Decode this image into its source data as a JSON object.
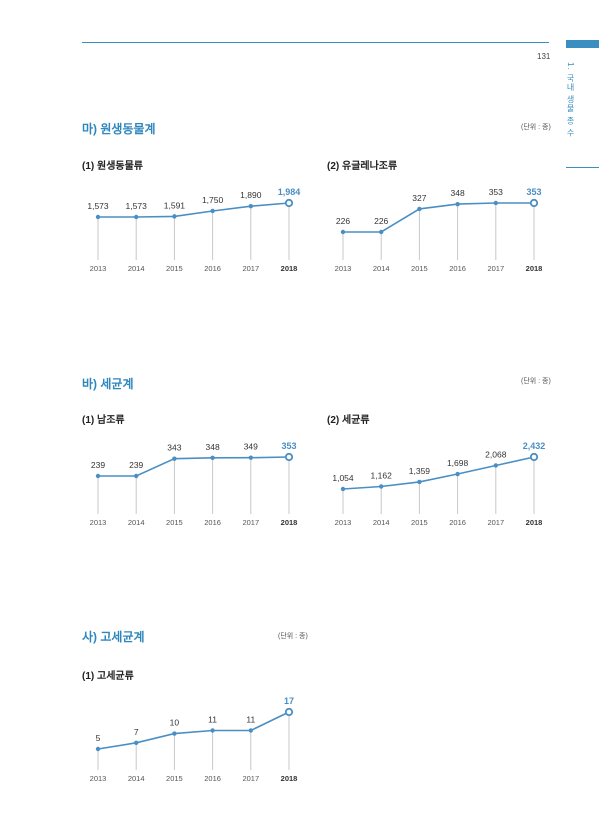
{
  "page": {
    "number": "131",
    "side_label": "1. 국내 생물 종 수"
  },
  "colors": {
    "accent": "#3a8fc0",
    "line": "#4a8fc4",
    "grid": "#c8c8c8",
    "axis_text": "#555555"
  },
  "sections": [
    {
      "title": "마) 원생동물계",
      "unit": "(단위 : 종)"
    },
    {
      "title": "바) 세균계",
      "unit": "(단위 : 종)"
    },
    {
      "title": "사) 고세균계",
      "unit": "(단위 : 종)"
    }
  ],
  "chart_data": [
    {
      "type": "line",
      "title": "(1) 원생동물류",
      "categories": [
        "2013",
        "2014",
        "2015",
        "2016",
        "2017",
        "2018"
      ],
      "values": [
        1573,
        1573,
        1591,
        1750,
        1890,
        1984
      ],
      "labels": [
        "1,573",
        "1,573",
        "1,591",
        "1,750",
        "1,890",
        "1,984"
      ],
      "highlight_last": true
    },
    {
      "type": "line",
      "title": "(2) 유글레나조류",
      "categories": [
        "2013",
        "2014",
        "2015",
        "2016",
        "2017",
        "2018"
      ],
      "values": [
        226,
        226,
        327,
        348,
        353,
        353
      ],
      "labels": [
        "226",
        "226",
        "327",
        "348",
        "353",
        "353"
      ],
      "highlight_last": true
    },
    {
      "type": "line",
      "title": "(1) 남조류",
      "categories": [
        "2013",
        "2014",
        "2015",
        "2016",
        "2017",
        "2018"
      ],
      "values": [
        239,
        239,
        343,
        348,
        349,
        353
      ],
      "labels": [
        "239",
        "239",
        "343",
        "348",
        "349",
        "353"
      ],
      "highlight_last": true
    },
    {
      "type": "line",
      "title": "(2) 세균류",
      "categories": [
        "2013",
        "2014",
        "2015",
        "2016",
        "2017",
        "2018"
      ],
      "values": [
        1054,
        1162,
        1359,
        1698,
        2068,
        2432
      ],
      "labels": [
        "1,054",
        "1,162",
        "1,359",
        "1,698",
        "2,068",
        "2,432"
      ],
      "highlight_last": true
    },
    {
      "type": "line",
      "title": "(1) 고세균류",
      "categories": [
        "2013",
        "2014",
        "2015",
        "2016",
        "2017",
        "2018"
      ],
      "values": [
        5,
        7,
        10,
        11,
        11,
        17
      ],
      "labels": [
        "5",
        "7",
        "10",
        "11",
        "11",
        "17"
      ],
      "highlight_last": true
    }
  ]
}
